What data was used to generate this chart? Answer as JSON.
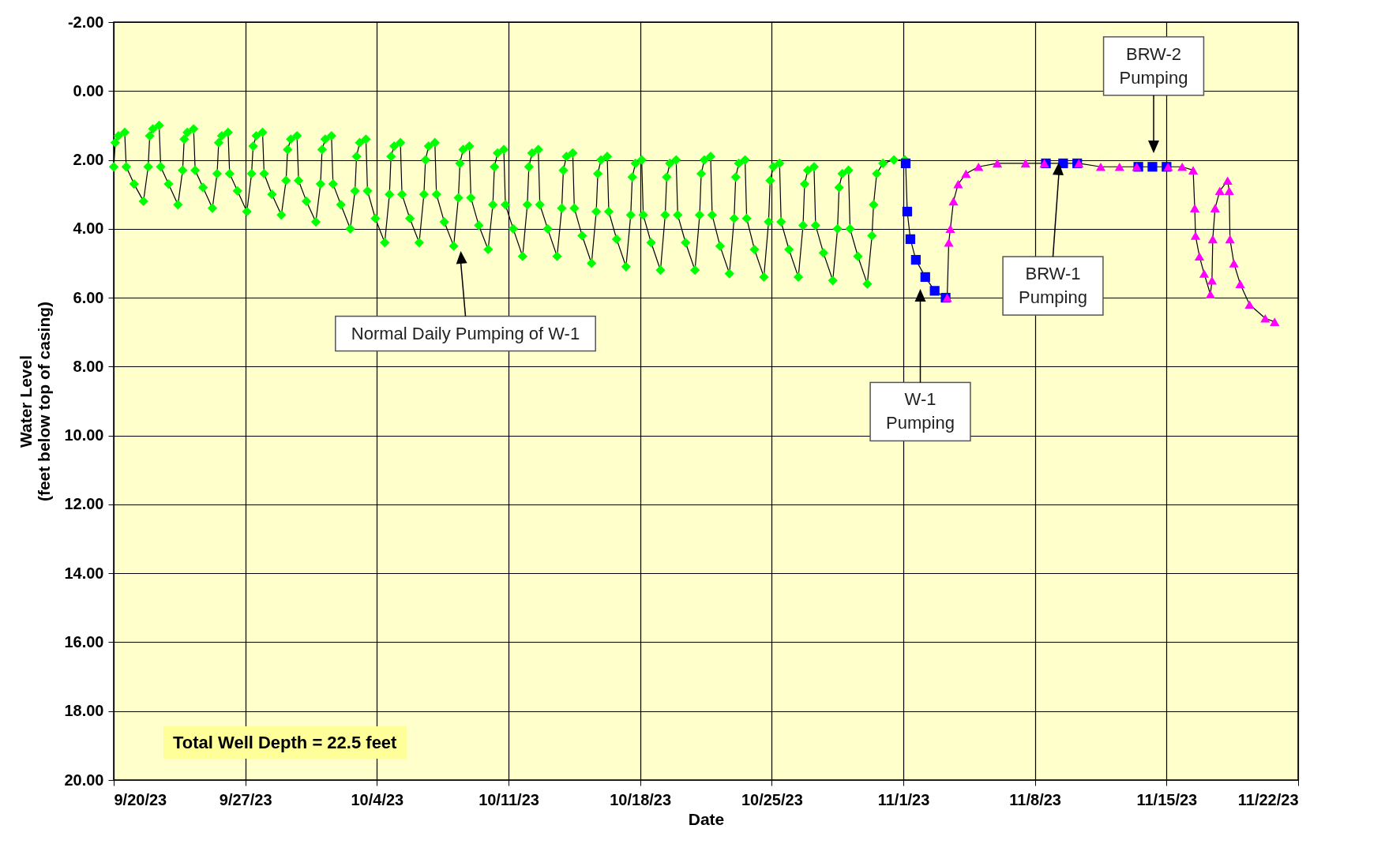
{
  "chart_data": {
    "type": "line",
    "xlabel": "Date",
    "ylabel": "Water Level\n(feet below top of casing)",
    "grid": true,
    "legend": false,
    "line_style": "solid",
    "xlim": [
      "--09-20T00:00",
      "--11-22T00:00"
    ],
    "xticks": [
      {
        "value": "--09-20T00:00",
        "label": "9/20/23"
      },
      {
        "value": "--09-27T00:00",
        "label": "9/27/23"
      },
      {
        "value": "--10-04T00:00",
        "label": "10/4/23"
      },
      {
        "value": "--10-11T00:00",
        "label": "10/11/23"
      },
      {
        "value": "--10-18T00:00",
        "label": "10/18/23"
      },
      {
        "value": "--10-25T00:00",
        "label": "10/25/23"
      },
      {
        "value": "--11-01T00:00",
        "label": "11/1/23"
      },
      {
        "value": "--11-08T00:00",
        "label": "11/8/23"
      },
      {
        "value": "--11-15T00:00",
        "label": "11/15/23"
      },
      {
        "value": "--11-22T00:00",
        "label": "11/22/23"
      }
    ],
    "ylim": [
      20,
      -2
    ],
    "yticks": [
      {
        "value": -2,
        "label": "-2.00"
      },
      {
        "value": 0,
        "label": "0.00"
      },
      {
        "value": 2,
        "label": "2.00"
      },
      {
        "value": 4,
        "label": "4.00"
      },
      {
        "value": 6,
        "label": "6.00"
      },
      {
        "value": 8,
        "label": "8.00"
      },
      {
        "value": 10,
        "label": "10.00"
      },
      {
        "value": 12,
        "label": "12.00"
      },
      {
        "value": 14,
        "label": "14.00"
      },
      {
        "value": 16,
        "label": "16.00"
      },
      {
        "value": 18,
        "label": "18.00"
      },
      {
        "value": 20,
        "label": "20.00"
      }
    ],
    "series": [
      {
        "color": "#00ff00",
        "marker": "diamond",
        "x": [
          "--09-20T00:00",
          "--09-20T02:00",
          "--09-20T06:00",
          "--09-20T14:00",
          "--09-20T16:00",
          "--09-21T02:00",
          "--09-21T14:00",
          "--09-21T20:00",
          "--09-21T22:00",
          "--09-22T02:00",
          "--09-22T10:00",
          "--09-22T12:00",
          "--09-22T22:00",
          "--09-23T10:00",
          "--09-23T16:00",
          "--09-23T18:00",
          "--09-23T22:00",
          "--09-24T06:00",
          "--09-24T08:00",
          "--09-24T18:00",
          "--09-25T06:00",
          "--09-25T12:00",
          "--09-25T14:00",
          "--09-25T18:00",
          "--09-26T02:00",
          "--09-26T04:00",
          "--09-26T14:00",
          "--09-27T02:00",
          "--09-27T08:00",
          "--09-27T10:00",
          "--09-27T14:00",
          "--09-27T22:00",
          "--09-28T00:00",
          "--09-28T10:00",
          "--09-28T22:00",
          "--09-29T04:00",
          "--09-29T06:00",
          "--09-29T10:00",
          "--09-29T18:00",
          "--09-29T20:00",
          "--09-30T06:00",
          "--09-30T18:00",
          "--10-01T00:00",
          "--10-01T02:00",
          "--10-01T06:00",
          "--10-01T14:00",
          "--10-01T16:00",
          "--10-02T02:00",
          "--10-02T14:00",
          "--10-02T20:00",
          "--10-02T22:00",
          "--10-03T02:00",
          "--10-03T10:00",
          "--10-03T12:00",
          "--10-03T22:00",
          "--10-04T10:00",
          "--10-04T16:00",
          "--10-04T18:00",
          "--10-04T22:00",
          "--10-05T06:00",
          "--10-05T08:00",
          "--10-05T18:00",
          "--10-06T06:00",
          "--10-06T12:00",
          "--10-06T14:00",
          "--10-06T18:00",
          "--10-07T02:00",
          "--10-07T04:00",
          "--10-07T14:00",
          "--10-08T02:00",
          "--10-08T08:00",
          "--10-08T10:00",
          "--10-08T14:00",
          "--10-08T22:00",
          "--10-09T00:00",
          "--10-09T10:00",
          "--10-09T22:00",
          "--10-10T04:00",
          "--10-10T06:00",
          "--10-10T10:00",
          "--10-10T18:00",
          "--10-10T20:00",
          "--10-11T06:00",
          "--10-11T18:00",
          "--10-12T00:00",
          "--10-12T02:00",
          "--10-12T06:00",
          "--10-12T14:00",
          "--10-12T16:00",
          "--10-13T02:00",
          "--10-13T14:00",
          "--10-13T20:00",
          "--10-13T22:00",
          "--10-14T02:00",
          "--10-14T10:00",
          "--10-14T12:00",
          "--10-14T22:00",
          "--10-15T10:00",
          "--10-15T16:00",
          "--10-15T18:00",
          "--10-15T22:00",
          "--10-16T06:00",
          "--10-16T08:00",
          "--10-16T18:00",
          "--10-17T06:00",
          "--10-17T12:00",
          "--10-17T14:00",
          "--10-17T18:00",
          "--10-18T02:00",
          "--10-18T04:00",
          "--10-18T14:00",
          "--10-19T02:00",
          "--10-19T08:00",
          "--10-19T10:00",
          "--10-19T14:00",
          "--10-19T22:00",
          "--10-20T00:00",
          "--10-20T10:00",
          "--10-20T22:00",
          "--10-21T04:00",
          "--10-21T06:00",
          "--10-21T10:00",
          "--10-21T18:00",
          "--10-21T20:00",
          "--10-22T06:00",
          "--10-22T18:00",
          "--10-23T00:00",
          "--10-23T02:00",
          "--10-23T06:00",
          "--10-23T14:00",
          "--10-23T16:00",
          "--10-24T02:00",
          "--10-24T14:00",
          "--10-24T20:00",
          "--10-24T22:00",
          "--10-25T02:00",
          "--10-25T10:00",
          "--10-25T12:00",
          "--10-25T22:00",
          "--10-26T10:00",
          "--10-26T16:00",
          "--10-26T18:00",
          "--10-26T22:00",
          "--10-27T06:00",
          "--10-27T08:00",
          "--10-27T18:00",
          "--10-28T06:00",
          "--10-28T12:00",
          "--10-28T14:00",
          "--10-28T18:00",
          "--10-29T02:00",
          "--10-29T04:00",
          "--10-29T14:00",
          "--10-30T02:00",
          "--10-30T08:00",
          "--10-30T10:00",
          "--10-30T14:00",
          "--10-30T22:00",
          "--10-31T12:00",
          "--11-01T02:00"
        ],
        "values": [
          2.2,
          1.5,
          1.3,
          1.2,
          2.2,
          2.7,
          3.2,
          2.2,
          1.3,
          1.1,
          1.0,
          2.2,
          2.7,
          3.3,
          2.3,
          1.4,
          1.2,
          1.1,
          2.3,
          2.8,
          3.4,
          2.4,
          1.5,
          1.3,
          1.2,
          2.4,
          2.9,
          3.5,
          2.4,
          1.6,
          1.3,
          1.2,
          2.4,
          3.0,
          3.6,
          2.6,
          1.7,
          1.4,
          1.3,
          2.6,
          3.2,
          3.8,
          2.7,
          1.7,
          1.4,
          1.3,
          2.7,
          3.3,
          4.0,
          2.9,
          1.9,
          1.5,
          1.4,
          2.9,
          3.7,
          4.4,
          3.0,
          1.9,
          1.6,
          1.5,
          3.0,
          3.7,
          4.4,
          3.0,
          2.0,
          1.6,
          1.5,
          3.0,
          3.8,
          4.5,
          3.1,
          2.1,
          1.7,
          1.6,
          3.1,
          3.9,
          4.6,
          3.3,
          2.2,
          1.8,
          1.7,
          3.3,
          4.0,
          4.8,
          3.3,
          2.2,
          1.8,
          1.7,
          3.3,
          4.0,
          4.8,
          3.4,
          2.3,
          1.9,
          1.8,
          3.4,
          4.2,
          5.0,
          3.5,
          2.4,
          2.0,
          1.9,
          3.5,
          4.3,
          5.1,
          3.6,
          2.5,
          2.1,
          2.0,
          3.6,
          4.4,
          5.2,
          3.6,
          2.5,
          2.1,
          2.0,
          3.6,
          4.4,
          5.2,
          3.6,
          2.4,
          2.0,
          1.9,
          3.6,
          4.5,
          5.3,
          3.7,
          2.5,
          2.1,
          2.0,
          3.7,
          4.6,
          5.4,
          3.8,
          2.6,
          2.2,
          2.1,
          3.8,
          4.6,
          5.4,
          3.9,
          2.7,
          2.3,
          2.2,
          3.9,
          4.7,
          5.5,
          4.0,
          2.8,
          2.4,
          2.3,
          4.0,
          4.8,
          5.6,
          4.2,
          3.3,
          2.4,
          2.1,
          2.0,
          2.0
        ]
      },
      {
        "color": "#0000ff",
        "marker": "square",
        "x": [
          "--11-01T03:00",
          "--11-01T05:00",
          "--11-01T09:00",
          "--11-01T16:00",
          "--11-02T04:00",
          "--11-02T16:00",
          "--11-03T06:00"
        ],
        "values": [
          2.1,
          3.5,
          4.3,
          4.9,
          5.4,
          5.8,
          6.0
        ]
      },
      {
        "color": "#0000ff",
        "marker": "square",
        "x": [
          "--11-08T14:00",
          "--11-09T12:00",
          "--11-10T06:00"
        ],
        "values": [
          2.1,
          2.1,
          2.1
        ]
      },
      {
        "color": "#0000ff",
        "marker": "square",
        "x": [
          "--11-13T12:00",
          "--11-14T06:00",
          "--11-15T00:00"
        ],
        "values": [
          2.2,
          2.2,
          2.2
        ]
      },
      {
        "color": "#ff00ff",
        "marker": "triangle",
        "x": [
          "--11-03T08:00",
          "--11-03T10:00",
          "--11-03T12:00",
          "--11-03T16:00",
          "--11-03T22:00",
          "--11-04T08:00",
          "--11-05T00:00",
          "--11-06T00:00",
          "--11-07T12:00",
          "--11-08T12:00"
        ],
        "values": [
          6.0,
          4.4,
          4.0,
          3.2,
          2.7,
          2.4,
          2.2,
          2.1,
          2.1,
          2.1
        ]
      },
      {
        "color": "#ff00ff",
        "marker": "triangle",
        "x": [
          "--11-10T08:00",
          "--11-11T12:00",
          "--11-12T12:00",
          "--11-13T10:00"
        ],
        "values": [
          2.1,
          2.2,
          2.2,
          2.2
        ]
      },
      {
        "color": "#ff00ff",
        "marker": "triangle",
        "x": [
          "--11-15T02:00",
          "--11-15T20:00",
          "--11-16T10:00",
          "--11-16T12:00",
          "--11-16T13:00",
          "--11-16T18:00",
          "--11-17T00:00",
          "--11-17T08:00",
          "--11-17T10:00",
          "--11-17T11:00",
          "--11-17T14:00",
          "--11-17T20:00",
          "--11-18T06:00",
          "--11-18T08:00",
          "--11-18T09:00",
          "--11-18T14:00",
          "--11-18T22:00",
          "--11-19T10:00",
          "--11-20T06:00",
          "--11-20T18:00"
        ],
        "values": [
          2.2,
          2.2,
          2.3,
          3.4,
          4.2,
          4.8,
          5.3,
          5.9,
          5.5,
          4.3,
          3.4,
          2.9,
          2.6,
          2.9,
          4.3,
          5.0,
          5.6,
          6.2,
          6.6,
          6.7
        ]
      }
    ],
    "annotations": [
      "Normal Daily Pumping of W-1",
      "W-1 Pumping",
      "BRW-1 Pumping",
      "BRW-2 Pumping",
      "Total Well Depth = 22.5 feet"
    ]
  }
}
